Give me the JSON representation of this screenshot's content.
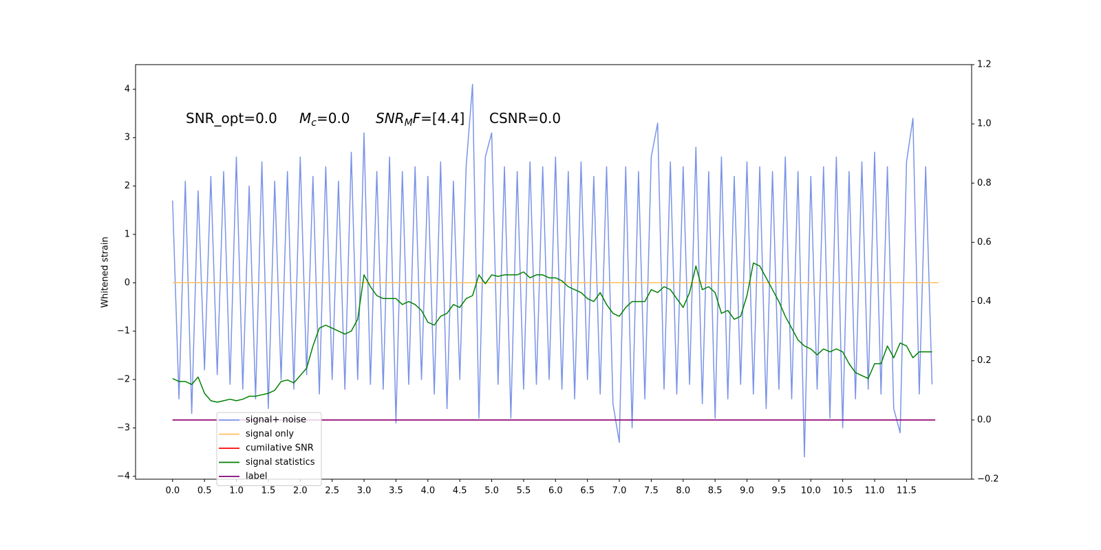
{
  "chart_data": {
    "type": "line",
    "ylabel": "Whitened strain",
    "annotations": [
      [
        {
          "text": "SNR_opt=0.0"
        }
      ],
      [
        {
          "text": "M",
          "style": "italic"
        },
        {
          "text": "c",
          "style": "italic-sub"
        },
        {
          "text": "=0.0"
        }
      ],
      [
        {
          "text": "SNR",
          "style": "italic"
        },
        {
          "text": "M",
          "style": "italic-sub"
        },
        {
          "text": "F",
          "style": "italic"
        },
        {
          "text": "=[4.4]"
        }
      ],
      [
        {
          "text": "CSNR=0.0"
        }
      ]
    ],
    "x": [
      0,
      0.1,
      0.2,
      0.3,
      0.4,
      0.5,
      0.6,
      0.7,
      0.8,
      0.9,
      1,
      1.1,
      1.2,
      1.3,
      1.4,
      1.5,
      1.6,
      1.7,
      1.8,
      1.9,
      2,
      2.1,
      2.2,
      2.3,
      2.4,
      2.5,
      2.6,
      2.7,
      2.8,
      2.9,
      3,
      3.1,
      3.2,
      3.3,
      3.4,
      3.5,
      3.6,
      3.7,
      3.8,
      3.9,
      4,
      4.1,
      4.2,
      4.3,
      4.4,
      4.5,
      4.6,
      4.7,
      4.8,
      4.9,
      5,
      5.1,
      5.2,
      5.3,
      5.4,
      5.5,
      5.6,
      5.7,
      5.8,
      5.9,
      6,
      6.1,
      6.2,
      6.3,
      6.4,
      6.5,
      6.6,
      6.7,
      6.8,
      6.9,
      7,
      7.1,
      7.2,
      7.3,
      7.4,
      7.5,
      7.6,
      7.7,
      7.8,
      7.9,
      8,
      8.1,
      8.2,
      8.3,
      8.4,
      8.5,
      8.6,
      8.7,
      8.8,
      8.9,
      9,
      9.1,
      9.2,
      9.3,
      9.4,
      9.5,
      9.6,
      9.7,
      9.8,
      9.9,
      10,
      10.1,
      10.2,
      10.3,
      10.4,
      10.5,
      10.6,
      10.7,
      10.8,
      10.9,
      11,
      11.1,
      11.2,
      11.3,
      11.4,
      11.5,
      11.6,
      11.7,
      11.8,
      11.9
    ],
    "series": [
      {
        "name": "signal+ noise",
        "color": "#7a93e6",
        "axis": "y",
        "values": [
          1.7,
          -2.4,
          2.1,
          -2.7,
          1.9,
          -1.8,
          2.2,
          -1.9,
          2.3,
          -2.1,
          2.6,
          -2.2,
          2.0,
          -2.4,
          2.5,
          -2.6,
          2.1,
          -2.0,
          2.3,
          -2.2,
          2.6,
          -1.9,
          2.2,
          -2.3,
          2.4,
          -2.0,
          2.1,
          -2.2,
          2.7,
          -2.0,
          3.1,
          -2.1,
          2.3,
          -2.2,
          2.6,
          -2.9,
          2.3,
          -2.1,
          2.4,
          -2.0,
          2.2,
          -2.3,
          2.5,
          -2.6,
          2.1,
          -2.0,
          2.4,
          4.1,
          -2.8,
          2.6,
          3.1,
          -2.1,
          2.4,
          -2.8,
          2.3,
          -2.2,
          2.5,
          -2.1,
          2.4,
          -2.0,
          2.6,
          -2.2,
          2.3,
          -2.4,
          2.5,
          -2.0,
          2.2,
          -2.3,
          2.4,
          -2.5,
          -3.3,
          2.4,
          -3.0,
          2.3,
          -2.4,
          2.6,
          3.3,
          -2.2,
          2.5,
          -2.3,
          2.4,
          -2.1,
          2.8,
          -2.5,
          2.3,
          -2.8,
          2.6,
          -2.4,
          2.2,
          -2.1,
          2.5,
          -2.3,
          2.4,
          -2.6,
          2.3,
          -2.2,
          2.6,
          -2.4,
          2.3,
          -3.6,
          2.2,
          -2.2,
          2.4,
          -2.8,
          2.6,
          -3.0,
          2.3,
          -2.4,
          2.5,
          -2.2,
          2.7,
          -2.3,
          2.4,
          -2.6,
          -3.1,
          2.5,
          3.4,
          -2.3,
          2.4,
          -2.1
        ]
      },
      {
        "name": "signal only",
        "color": "#ffbf60",
        "axis": "y",
        "x": [
          0,
          12
        ],
        "values": [
          0,
          0
        ]
      },
      {
        "name": "cumilative SNR",
        "color": "#ff0000",
        "axis": "y2",
        "x": [
          0,
          11.95
        ],
        "values": [
          0,
          0
        ]
      },
      {
        "name": "signal statistics",
        "color": "#008000",
        "axis": "y2",
        "values": [
          0.14,
          0.13,
          0.13,
          0.12,
          0.145,
          0.09,
          0.065,
          0.06,
          0.065,
          0.07,
          0.065,
          0.07,
          0.08,
          0.08,
          0.085,
          0.09,
          0.1,
          0.13,
          0.135,
          0.125,
          0.15,
          0.175,
          0.25,
          0.31,
          0.32,
          0.31,
          0.3,
          0.29,
          0.3,
          0.34,
          0.49,
          0.45,
          0.42,
          0.41,
          0.41,
          0.41,
          0.39,
          0.4,
          0.39,
          0.37,
          0.33,
          0.32,
          0.35,
          0.36,
          0.39,
          0.38,
          0.41,
          0.42,
          0.49,
          0.46,
          0.49,
          0.485,
          0.49,
          0.49,
          0.49,
          0.5,
          0.48,
          0.49,
          0.49,
          0.48,
          0.48,
          0.47,
          0.45,
          0.44,
          0.43,
          0.41,
          0.4,
          0.43,
          0.39,
          0.36,
          0.35,
          0.38,
          0.4,
          0.4,
          0.4,
          0.44,
          0.43,
          0.45,
          0.44,
          0.41,
          0.38,
          0.43,
          0.52,
          0.44,
          0.45,
          0.43,
          0.36,
          0.37,
          0.34,
          0.35,
          0.42,
          0.53,
          0.52,
          0.48,
          0.44,
          0.4,
          0.35,
          0.31,
          0.27,
          0.25,
          0.24,
          0.22,
          0.24,
          0.23,
          0.24,
          0.23,
          0.19,
          0.16,
          0.15,
          0.14,
          0.19,
          0.19,
          0.25,
          0.21,
          0.26,
          0.25,
          0.21,
          0.23,
          0.23,
          0.23
        ]
      },
      {
        "name": "label",
        "color": "#800080",
        "axis": "y2",
        "x": [
          0,
          11.95
        ],
        "values": [
          0,
          0
        ]
      }
    ],
    "xlim": [
      -0.58,
      12.52
    ],
    "xticks": [
      {
        "value": 0,
        "label": "0.0"
      },
      0.5,
      {
        "value": 1,
        "label": "1.0"
      },
      1.5,
      {
        "value": 2,
        "label": "2.0"
      },
      2.5,
      {
        "value": 3,
        "label": "3.0"
      },
      3.5,
      {
        "value": 4,
        "label": "4.0"
      },
      4.5,
      {
        "value": 5,
        "label": "5.0"
      },
      5.5,
      {
        "value": 6,
        "label": "6.0"
      },
      6.5,
      {
        "value": 7,
        "label": "7.0"
      },
      7.5,
      {
        "value": 8,
        "label": "8.0"
      },
      8.5,
      {
        "value": 9,
        "label": "9.0"
      },
      9.5,
      {
        "value": 10,
        "label": "10.0"
      },
      10.5,
      {
        "value": 11,
        "label": "11.0"
      },
      11.5
    ],
    "ylim": [
      -4.06,
      4.51
    ],
    "yticks": [
      {
        "value": -4,
        "label": "−4"
      },
      {
        "value": -3,
        "label": "−3"
      },
      {
        "value": -2,
        "label": "−2"
      },
      {
        "value": -1,
        "label": "−1"
      },
      0,
      1,
      2,
      3,
      4
    ],
    "y2lim": [
      -0.2,
      1.2
    ],
    "y2ticks": [
      {
        "value": -0.2,
        "label": "−0.2"
      },
      {
        "value": 0,
        "label": "0.0"
      },
      0.2,
      0.4,
      0.6,
      0.8,
      {
        "value": 1,
        "label": "1.0"
      },
      1.2
    ],
    "legend": "lower left"
  }
}
